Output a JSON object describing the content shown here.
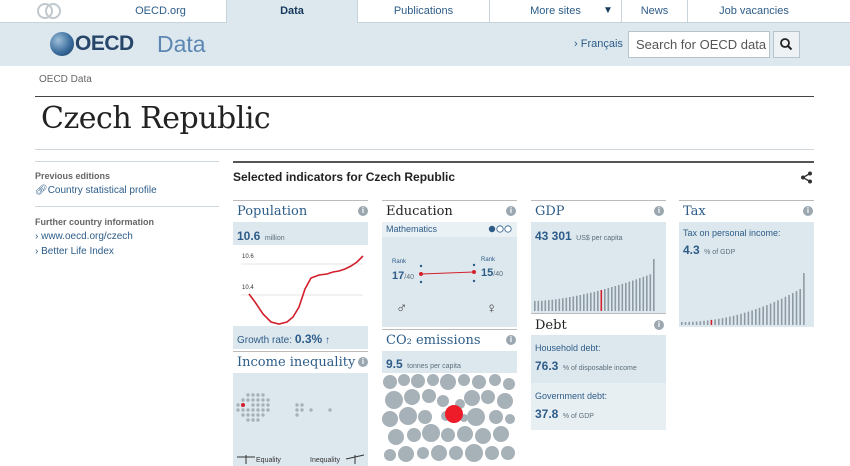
{
  "nav": {
    "oecd_org": "OECD.org",
    "data": "Data",
    "publications": "Publications",
    "more_sites": "More sites",
    "news": "News",
    "job_vacancies": "Job vacancies"
  },
  "header": {
    "brand": "OECD",
    "product": "Data",
    "language_link": "› Français",
    "search_placeholder": "Search for OECD data"
  },
  "breadcrumb": "OECD Data",
  "page_title": "Czech Republic",
  "sidebar": {
    "previous_editions_heading": "Previous editions",
    "country_profile_link": "Country statistical profile",
    "further_info_heading": "Further country information",
    "oecd_link": "› www.oecd.org/czech",
    "bli_link": "› Better Life Index"
  },
  "indicators": {
    "heading": "Selected indicators for Czech Republic",
    "population": {
      "title": "Population",
      "value": "10.6",
      "unit": "million",
      "axis_high": "10.6",
      "axis_low": "10.4",
      "growth_label": "Growth rate:",
      "growth_value": "0.3%"
    },
    "education": {
      "title": "Education",
      "subject": "Mathematics",
      "rank_label": "Rank",
      "rank_left": "17",
      "rank_right": "15",
      "rank_of": "/40"
    },
    "gdp": {
      "title": "GDP",
      "value": "43 301",
      "unit": "US$ per capita"
    },
    "tax": {
      "title": "Tax",
      "label": "Tax on personal income:",
      "value": "4.3",
      "unit": "% of GDP"
    },
    "debt": {
      "title": "Debt",
      "household_label": "Household debt:",
      "household_value": "76.3",
      "household_unit": "% of disposable income",
      "government_label": "Government debt:",
      "government_value": "37.8",
      "government_unit": "% of GDP"
    },
    "income_inequality": {
      "title": "Income inequality",
      "equality": "Equality",
      "inequality": "Inequality"
    },
    "co2": {
      "title": "CO₂ emissions",
      "value": "9.5",
      "unit": "tonnes per capita"
    },
    "info": "i"
  }
}
